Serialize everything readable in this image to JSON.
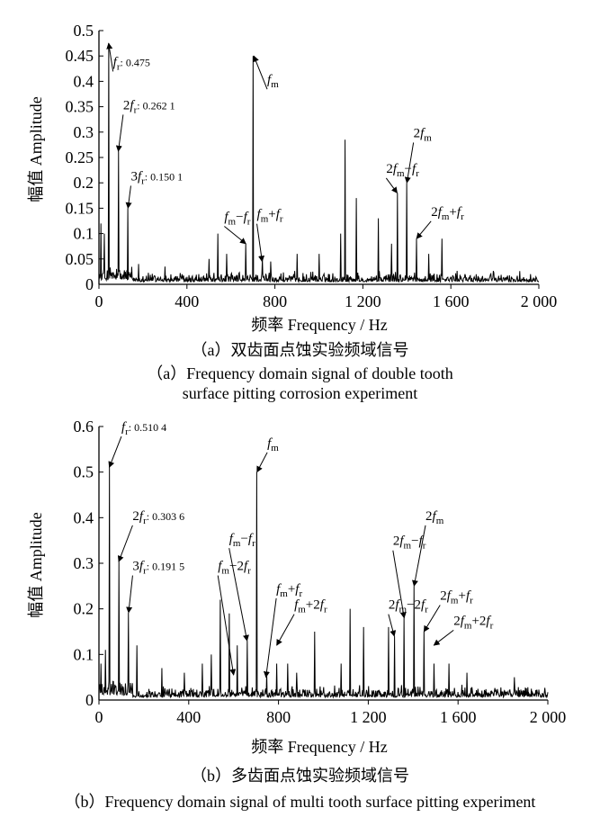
{
  "chart_data": [
    {
      "type": "line",
      "xlabel": "频率 Frequency / Hz",
      "ylabel": "幅值 Amplitude",
      "xlim": [
        0,
        2000
      ],
      "ylim": [
        0,
        0.5
      ],
      "xticks": [
        "0",
        "400",
        "800",
        "1 200",
        "1 600",
        "2 000"
      ],
      "yticks": [
        "0",
        "0.05",
        "0.1",
        "0.15",
        "0.2",
        "0.25",
        "0.3",
        "0.35",
        "0.4",
        "0.45",
        "0.5"
      ],
      "grid": false,
      "caption_zh": "（a）双齿面点蚀实验频域信号",
      "caption_en": [
        "（a）Frequency domain signal of double tooth",
        "surface pitting corrosion experiment"
      ],
      "noise_floor": 0.02,
      "peaks": [
        {
          "x": 10,
          "y": 0.12
        },
        {
          "x": 25,
          "y": 0.1
        },
        {
          "x": 44,
          "y": 0.475
        },
        {
          "x": 88,
          "y": 0.2621
        },
        {
          "x": 132,
          "y": 0.1501
        },
        {
          "x": 180,
          "y": 0.04
        },
        {
          "x": 300,
          "y": 0.035
        },
        {
          "x": 500,
          "y": 0.05
        },
        {
          "x": 540,
          "y": 0.1
        },
        {
          "x": 580,
          "y": 0.06
        },
        {
          "x": 668,
          "y": 0.08
        },
        {
          "x": 700,
          "y": 0.45
        },
        {
          "x": 742,
          "y": 0.05
        },
        {
          "x": 780,
          "y": 0.045
        },
        {
          "x": 900,
          "y": 0.06
        },
        {
          "x": 1000,
          "y": 0.06
        },
        {
          "x": 1100,
          "y": 0.1
        },
        {
          "x": 1120,
          "y": 0.285
        },
        {
          "x": 1170,
          "y": 0.17
        },
        {
          "x": 1270,
          "y": 0.13
        },
        {
          "x": 1330,
          "y": 0.08
        },
        {
          "x": 1356,
          "y": 0.18
        },
        {
          "x": 1400,
          "y": 0.2
        },
        {
          "x": 1444,
          "y": 0.09
        },
        {
          "x": 1500,
          "y": 0.06
        },
        {
          "x": 1560,
          "y": 0.09
        }
      ],
      "annotations": [
        {
          "kind": "val",
          "name": "f",
          "sub": "r",
          "mult": "",
          "value": ": 0.475",
          "tx": 44,
          "ty": 0.475,
          "lx": 64,
          "ly": 0.43
        },
        {
          "kind": "val",
          "name": "f",
          "sub": "r",
          "mult": "2",
          "value": ": 0.262 1",
          "tx": 88,
          "ty": 0.2621,
          "lx": 110,
          "ly": 0.345
        },
        {
          "kind": "val",
          "name": "f",
          "sub": "r",
          "mult": "3",
          "value": ": 0.150 1",
          "tx": 132,
          "ty": 0.1501,
          "lx": 145,
          "ly": 0.205
        },
        {
          "kind": "expr",
          "parts": [
            [
              "",
              "f"
            ],
            [
              "sub",
              "m"
            ]
          ],
          "tx": 704,
          "ty": 0.45,
          "lx": 765,
          "ly": 0.395
        },
        {
          "kind": "expr",
          "parts": [
            [
              "",
              "f"
            ],
            [
              "sub",
              "m"
            ],
            [
              "",
              "−"
            ],
            [
              "",
              "f"
            ],
            [
              "sub",
              "r"
            ]
          ],
          "tx": 668,
          "ty": 0.08,
          "lx": 570,
          "ly": 0.125
        },
        {
          "kind": "expr",
          "parts": [
            [
              "",
              "f"
            ],
            [
              "sub",
              "m"
            ],
            [
              "",
              "+"
            ],
            [
              "",
              "f"
            ],
            [
              "sub",
              "r"
            ]
          ],
          "tx": 742,
          "ty": 0.045,
          "lx": 718,
          "ly": 0.13
        },
        {
          "kind": "expr",
          "parts": [
            [
              "",
              "2"
            ],
            [
              "",
              "f"
            ],
            [
              "sub",
              "m"
            ]
          ],
          "tx": 1400,
          "ty": 0.2,
          "lx": 1430,
          "ly": 0.29
        },
        {
          "kind": "expr",
          "parts": [
            [
              "",
              "2"
            ],
            [
              "",
              "f"
            ],
            [
              "sub",
              "m"
            ],
            [
              "",
              "−"
            ],
            [
              "",
              "f"
            ],
            [
              "sub",
              "r"
            ]
          ],
          "tx": 1356,
          "ty": 0.18,
          "lx": 1306,
          "ly": 0.22
        },
        {
          "kind": "expr",
          "parts": [
            [
              "",
              "2"
            ],
            [
              "",
              "f"
            ],
            [
              "sub",
              "m"
            ],
            [
              "",
              "+"
            ],
            [
              "",
              "f"
            ],
            [
              "sub",
              "r"
            ]
          ],
          "tx": 1444,
          "ty": 0.09,
          "lx": 1510,
          "ly": 0.135
        }
      ]
    },
    {
      "type": "line",
      "xlabel": "频率 Frequency / Hz",
      "ylabel": "幅值 Amplitude",
      "xlim": [
        0,
        2000
      ],
      "ylim": [
        0,
        0.6
      ],
      "xticks": [
        "0",
        "400",
        "800",
        "1 200",
        "1 600",
        "2 000"
      ],
      "yticks": [
        "0",
        "0.1",
        "0.2",
        "0.3",
        "0.4",
        "0.5",
        "0.6"
      ],
      "grid": false,
      "caption_zh": "（b）多齿面点蚀实验频域信号",
      "caption_en": [
        "（b）Frequency domain signal of multi tooth surface pitting experiment"
      ],
      "noise_floor": 0.025,
      "peaks": [
        {
          "x": 10,
          "y": 0.08
        },
        {
          "x": 30,
          "y": 0.11
        },
        {
          "x": 46,
          "y": 0.5104
        },
        {
          "x": 88,
          "y": 0.3036
        },
        {
          "x": 132,
          "y": 0.1915
        },
        {
          "x": 170,
          "y": 0.12
        },
        {
          "x": 280,
          "y": 0.07
        },
        {
          "x": 380,
          "y": 0.06
        },
        {
          "x": 460,
          "y": 0.08
        },
        {
          "x": 500,
          "y": 0.1
        },
        {
          "x": 540,
          "y": 0.22
        },
        {
          "x": 580,
          "y": 0.19
        },
        {
          "x": 616,
          "y": 0.12
        },
        {
          "x": 660,
          "y": 0.13
        },
        {
          "x": 704,
          "y": 0.5
        },
        {
          "x": 748,
          "y": 0.06
        },
        {
          "x": 792,
          "y": 0.08
        },
        {
          "x": 840,
          "y": 0.08
        },
        {
          "x": 880,
          "y": 0.06
        },
        {
          "x": 960,
          "y": 0.15
        },
        {
          "x": 1080,
          "y": 0.08
        },
        {
          "x": 1120,
          "y": 0.2
        },
        {
          "x": 1180,
          "y": 0.16
        },
        {
          "x": 1290,
          "y": 0.16
        },
        {
          "x": 1316,
          "y": 0.14
        },
        {
          "x": 1360,
          "y": 0.18
        },
        {
          "x": 1404,
          "y": 0.25
        },
        {
          "x": 1448,
          "y": 0.15
        },
        {
          "x": 1492,
          "y": 0.08
        },
        {
          "x": 1560,
          "y": 0.08
        },
        {
          "x": 1640,
          "y": 0.06
        },
        {
          "x": 1850,
          "y": 0.05
        }
      ],
      "annotations": [
        {
          "kind": "val",
          "name": "f",
          "sub": "r",
          "mult": "",
          "value": ": 0.510 4",
          "tx": 46,
          "ty": 0.5104,
          "lx": 100,
          "ly": 0.59
        },
        {
          "kind": "val",
          "name": "f",
          "sub": "r",
          "mult": "2",
          "value": ": 0.303 6",
          "tx": 88,
          "ty": 0.3036,
          "lx": 150,
          "ly": 0.395
        },
        {
          "kind": "val",
          "name": "f",
          "sub": "r",
          "mult": "3",
          "value": ": 0.191 5",
          "tx": 132,
          "ty": 0.1915,
          "lx": 150,
          "ly": 0.285
        },
        {
          "kind": "expr",
          "parts": [
            [
              "",
              "f"
            ],
            [
              "sub",
              "m"
            ]
          ],
          "tx": 704,
          "ty": 0.5,
          "lx": 750,
          "ly": 0.555
        },
        {
          "kind": "expr",
          "parts": [
            [
              "",
              "f"
            ],
            [
              "sub",
              "m"
            ],
            [
              "",
              "−"
            ],
            [
              "",
              "f"
            ],
            [
              "sub",
              "r"
            ]
          ],
          "tx": 660,
          "ty": 0.13,
          "lx": 580,
          "ly": 0.345
        },
        {
          "kind": "expr",
          "parts": [
            [
              "",
              "f"
            ],
            [
              "sub",
              "m"
            ],
            [
              "",
              "−"
            ],
            [
              "",
              "2"
            ],
            [
              "",
              "f"
            ],
            [
              "sub",
              "r"
            ]
          ],
          "tx": 600,
          "ty": 0.055,
          "lx": 530,
          "ly": 0.285
        },
        {
          "kind": "expr",
          "parts": [
            [
              "",
              "f"
            ],
            [
              "sub",
              "m"
            ],
            [
              "",
              "+"
            ],
            [
              "",
              "f"
            ],
            [
              "sub",
              "r"
            ]
          ],
          "tx": 744,
          "ty": 0.05,
          "lx": 790,
          "ly": 0.235
        },
        {
          "kind": "expr",
          "parts": [
            [
              "",
              "f"
            ],
            [
              "sub",
              "m"
            ],
            [
              "",
              "+"
            ],
            [
              "",
              "2"
            ],
            [
              "",
              "f"
            ],
            [
              "sub",
              "r"
            ]
          ],
          "tx": 792,
          "ty": 0.12,
          "lx": 870,
          "ly": 0.2
        },
        {
          "kind": "expr",
          "parts": [
            [
              "",
              "2"
            ],
            [
              "",
              "f"
            ],
            [
              "sub",
              "m"
            ]
          ],
          "tx": 1404,
          "ty": 0.25,
          "lx": 1455,
          "ly": 0.395
        },
        {
          "kind": "expr",
          "parts": [
            [
              "",
              "2"
            ],
            [
              "",
              "f"
            ],
            [
              "sub",
              "m"
            ],
            [
              "",
              "−"
            ],
            [
              "",
              "f"
            ],
            [
              "sub",
              "r"
            ]
          ],
          "tx": 1360,
          "ty": 0.18,
          "lx": 1310,
          "ly": 0.34
        },
        {
          "kind": "expr",
          "parts": [
            [
              "",
              "2"
            ],
            [
              "",
              "f"
            ],
            [
              "sub",
              "m"
            ],
            [
              "",
              "−"
            ],
            [
              "",
              "2"
            ],
            [
              "",
              "f"
            ],
            [
              "sub",
              "r"
            ]
          ],
          "tx": 1316,
          "ty": 0.14,
          "lx": 1290,
          "ly": 0.2
        },
        {
          "kind": "expr",
          "parts": [
            [
              "",
              "2"
            ],
            [
              "",
              "f"
            ],
            [
              "sub",
              "m"
            ],
            [
              "",
              "+"
            ],
            [
              "",
              "f"
            ],
            [
              "sub",
              "r"
            ]
          ],
          "tx": 1448,
          "ty": 0.15,
          "lx": 1520,
          "ly": 0.22
        },
        {
          "kind": "expr",
          "parts": [
            [
              "",
              "2"
            ],
            [
              "",
              "f"
            ],
            [
              "sub",
              "m"
            ],
            [
              "",
              "+"
            ],
            [
              "",
              "2"
            ],
            [
              "",
              "f"
            ],
            [
              "sub",
              "r"
            ]
          ],
          "tx": 1492,
          "ty": 0.12,
          "lx": 1580,
          "ly": 0.165
        }
      ]
    }
  ]
}
